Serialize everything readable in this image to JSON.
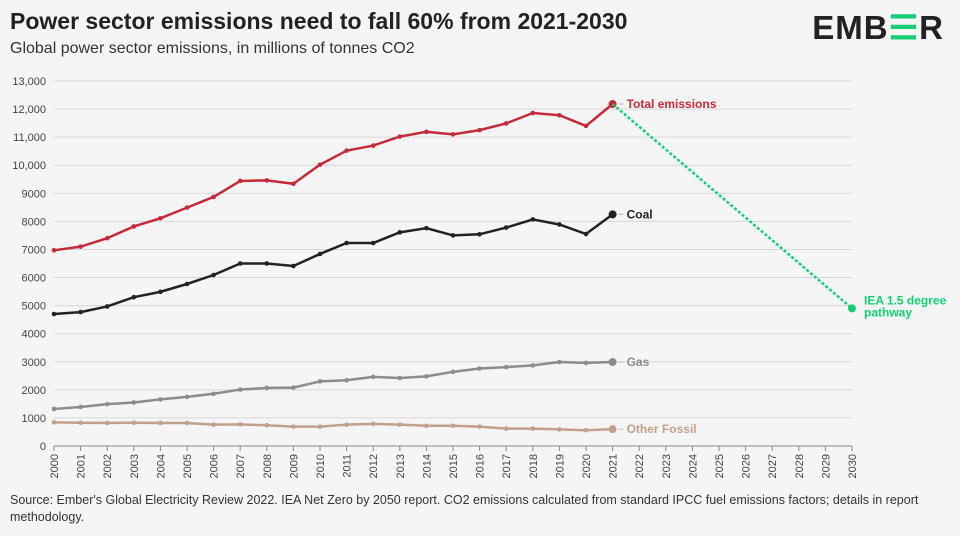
{
  "header": {
    "title": "Power sector emissions need to fall 60% from 2021-2030",
    "subtitle": "Global power sector emissions, in millions of tonnes CO2",
    "logo_text": "EMBER"
  },
  "footer": {
    "source": "Source: Ember's Global Electricity Review 2022. IEA Net Zero by 2050 report. CO2 emissions calculated from standard IPCC fuel emissions factors; details in report methodology."
  },
  "chart_data": {
    "type": "line",
    "title": "Power sector emissions need to fall 60% from 2021-2030",
    "subtitle": "Global power sector emissions, in millions of tonnes CO2",
    "xlim": [
      2000,
      2030
    ],
    "ylim": [
      0,
      13000
    ],
    "yticks": [
      0,
      1000,
      2000,
      3000,
      4000,
      5000,
      6000,
      7000,
      8000,
      9000,
      10000,
      11000,
      12000,
      13000
    ],
    "ytick_labels": [
      "0",
      "1000",
      "2000",
      "3000",
      "4000",
      "5000",
      "6000",
      "7000",
      "8000",
      "9000",
      "10,000",
      "11,000",
      "12,000",
      "13,000"
    ],
    "xticks": [
      2000,
      2001,
      2002,
      2003,
      2004,
      2005,
      2006,
      2007,
      2008,
      2009,
      2010,
      2011,
      2012,
      2013,
      2014,
      2015,
      2016,
      2017,
      2018,
      2019,
      2020,
      2021,
      2022,
      2023,
      2024,
      2025,
      2026,
      2027,
      2028,
      2029,
      2030
    ],
    "grid": true,
    "legend": "inline labels at line ends",
    "x": [
      2000,
      2001,
      2002,
      2003,
      2004,
      2005,
      2006,
      2007,
      2008,
      2009,
      2010,
      2011,
      2012,
      2013,
      2014,
      2015,
      2016,
      2017,
      2018,
      2019,
      2020,
      2021
    ],
    "series": [
      {
        "name": "Total emissions",
        "color": "#c32a3a",
        "values": [
          6970,
          7100,
          7400,
          7820,
          8110,
          8490,
          8870,
          9440,
          9460,
          9340,
          10020,
          10520,
          10700,
          11020,
          11190,
          11100,
          11250,
          11490,
          11860,
          11780,
          11400,
          12180
        ]
      },
      {
        "name": "Coal",
        "color": "#222222",
        "values": [
          4700,
          4770,
          4970,
          5300,
          5490,
          5770,
          6090,
          6500,
          6500,
          6410,
          6840,
          7230,
          7230,
          7610,
          7760,
          7500,
          7540,
          7780,
          8070,
          7890,
          7550,
          8250
        ]
      },
      {
        "name": "Gas",
        "color": "#8c8c8c",
        "values": [
          1320,
          1390,
          1490,
          1550,
          1660,
          1750,
          1860,
          2010,
          2070,
          2080,
          2300,
          2340,
          2460,
          2420,
          2480,
          2640,
          2760,
          2810,
          2870,
          2990,
          2960,
          2990
        ]
      },
      {
        "name": "Other Fossil",
        "color": "#c0a08a",
        "values": [
          840,
          830,
          820,
          830,
          820,
          820,
          760,
          770,
          740,
          690,
          690,
          760,
          790,
          760,
          720,
          720,
          690,
          620,
          620,
          590,
          560,
          600
        ]
      }
    ],
    "pathway": {
      "name": "IEA 1.5 degree pathway",
      "name_lines": [
        "IEA 1.5 degree",
        "pathway"
      ],
      "color": "#13ce74",
      "x": [
        2021,
        2030
      ],
      "values": [
        12180,
        4900
      ],
      "style": "dotted"
    }
  }
}
